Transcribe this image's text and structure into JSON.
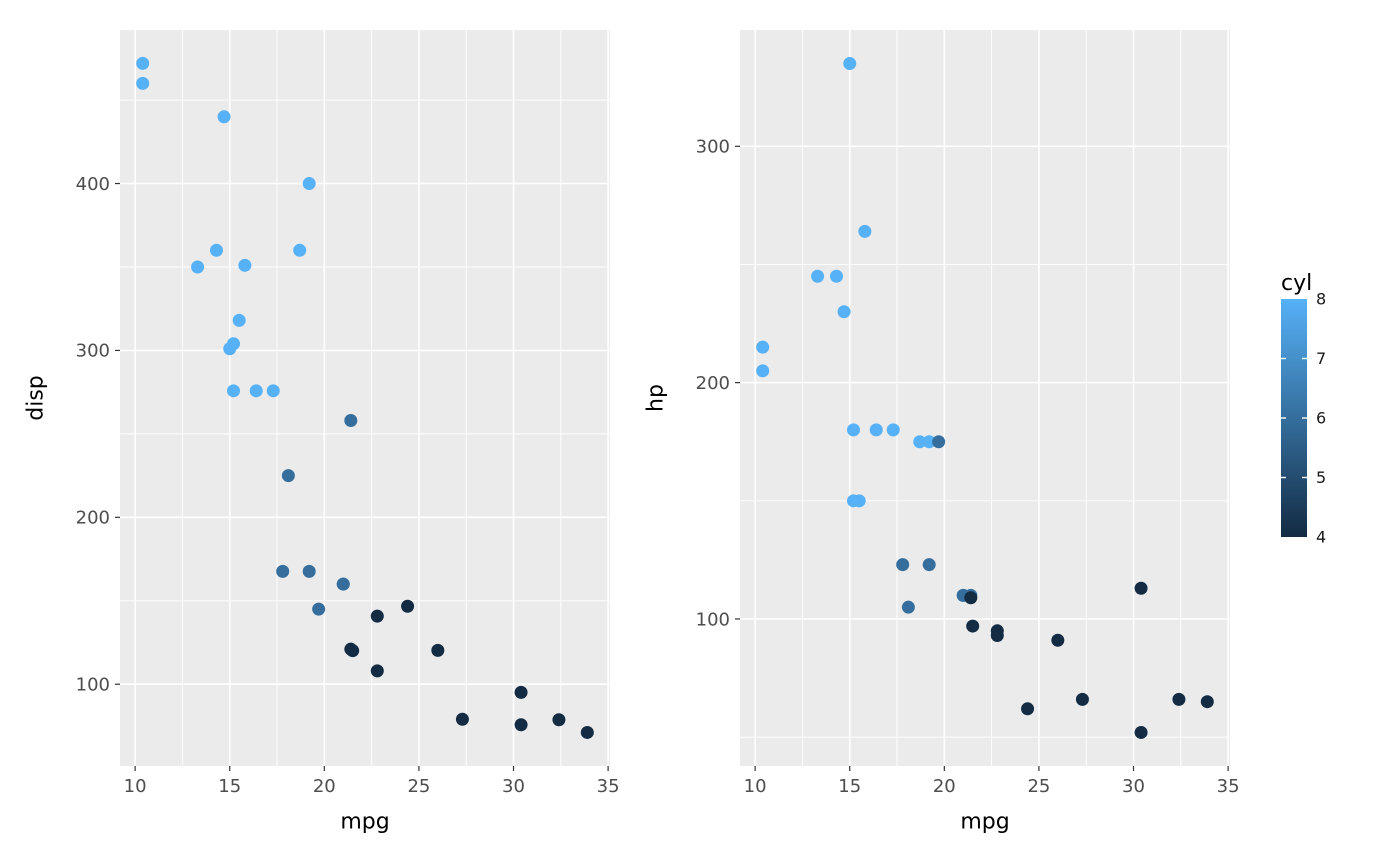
{
  "figure": {
    "background": "#FFFFFF"
  },
  "style": {
    "panel_bg": "#EBEBEB",
    "grid_color": "#FFFFFF",
    "tick_color": "#333333",
    "tick_label_color": "#4D4D4D",
    "axis_title_color": "#000000",
    "point_radius": 6.5
  },
  "legend": {
    "title": "cyl",
    "min": 4,
    "max": 8,
    "tick_labels": [
      8,
      7,
      6,
      5,
      4
    ],
    "inner_ticks": [
      7,
      6,
      5
    ],
    "color_low": "#132B43",
    "color_high": "#56B1F7"
  },
  "chart_data": [
    {
      "type": "scatter",
      "title": "",
      "xlabel": "mpg",
      "ylabel": "disp",
      "xlim": [
        9.2,
        35.1
      ],
      "ylim": [
        51,
        492
      ],
      "x_ticks": [
        10,
        15,
        20,
        25,
        30,
        35
      ],
      "y_ticks": [
        100,
        200,
        300,
        400
      ],
      "x_minor": [
        12.5,
        17.5,
        22.5,
        27.5,
        32.5
      ],
      "y_minor": [
        150,
        250,
        350,
        450
      ],
      "grid": true,
      "legend_position": "right",
      "color_field": "cyl",
      "points": [
        [
          21.0,
          160,
          6
        ],
        [
          21.0,
          160,
          6
        ],
        [
          22.8,
          108,
          4
        ],
        [
          21.4,
          258,
          6
        ],
        [
          18.7,
          360,
          8
        ],
        [
          18.1,
          225,
          6
        ],
        [
          14.3,
          360,
          8
        ],
        [
          24.4,
          146.7,
          4
        ],
        [
          22.8,
          140.8,
          4
        ],
        [
          19.2,
          167.6,
          6
        ],
        [
          17.8,
          167.6,
          6
        ],
        [
          16.4,
          275.8,
          8
        ],
        [
          17.3,
          275.8,
          8
        ],
        [
          15.2,
          275.8,
          8
        ],
        [
          10.4,
          472,
          8
        ],
        [
          10.4,
          460,
          8
        ],
        [
          14.7,
          440,
          8
        ],
        [
          32.4,
          78.7,
          4
        ],
        [
          30.4,
          75.7,
          4
        ],
        [
          33.9,
          71.1,
          4
        ],
        [
          21.5,
          120.1,
          4
        ],
        [
          15.5,
          318,
          8
        ],
        [
          15.2,
          304,
          8
        ],
        [
          13.3,
          350,
          8
        ],
        [
          19.2,
          400,
          8
        ],
        [
          27.3,
          79,
          4
        ],
        [
          26.0,
          120.3,
          4
        ],
        [
          30.4,
          95.1,
          4
        ],
        [
          15.8,
          351,
          8
        ],
        [
          19.7,
          145,
          6
        ],
        [
          15.0,
          301,
          8
        ],
        [
          21.4,
          121,
          4
        ]
      ]
    },
    {
      "type": "scatter",
      "title": "",
      "xlabel": "mpg",
      "ylabel": "hp",
      "xlim": [
        9.2,
        35.1
      ],
      "ylim": [
        37.8,
        349.2
      ],
      "x_ticks": [
        10,
        15,
        20,
        25,
        30,
        35
      ],
      "y_ticks": [
        100,
        200,
        300
      ],
      "x_minor": [
        12.5,
        17.5,
        22.5,
        27.5,
        32.5
      ],
      "y_minor": [
        50,
        150,
        250
      ],
      "grid": true,
      "legend_position": "right",
      "color_field": "cyl",
      "points": [
        [
          21.0,
          110,
          6
        ],
        [
          21.0,
          110,
          6
        ],
        [
          22.8,
          93,
          4
        ],
        [
          21.4,
          110,
          6
        ],
        [
          18.7,
          175,
          8
        ],
        [
          18.1,
          105,
          6
        ],
        [
          14.3,
          245,
          8
        ],
        [
          24.4,
          62,
          4
        ],
        [
          22.8,
          95,
          4
        ],
        [
          19.2,
          123,
          6
        ],
        [
          17.8,
          123,
          6
        ],
        [
          16.4,
          180,
          8
        ],
        [
          17.3,
          180,
          8
        ],
        [
          15.2,
          180,
          8
        ],
        [
          10.4,
          205,
          8
        ],
        [
          10.4,
          215,
          8
        ],
        [
          14.7,
          230,
          8
        ],
        [
          32.4,
          66,
          4
        ],
        [
          30.4,
          52,
          4
        ],
        [
          33.9,
          65,
          4
        ],
        [
          21.5,
          97,
          4
        ],
        [
          15.5,
          150,
          8
        ],
        [
          15.2,
          150,
          8
        ],
        [
          13.3,
          245,
          8
        ],
        [
          19.2,
          175,
          8
        ],
        [
          27.3,
          66,
          4
        ],
        [
          26.0,
          91,
          4
        ],
        [
          30.4,
          113,
          4
        ],
        [
          15.8,
          264,
          8
        ],
        [
          19.7,
          175,
          6
        ],
        [
          15.0,
          335,
          8
        ],
        [
          21.4,
          109,
          4
        ]
      ]
    }
  ]
}
